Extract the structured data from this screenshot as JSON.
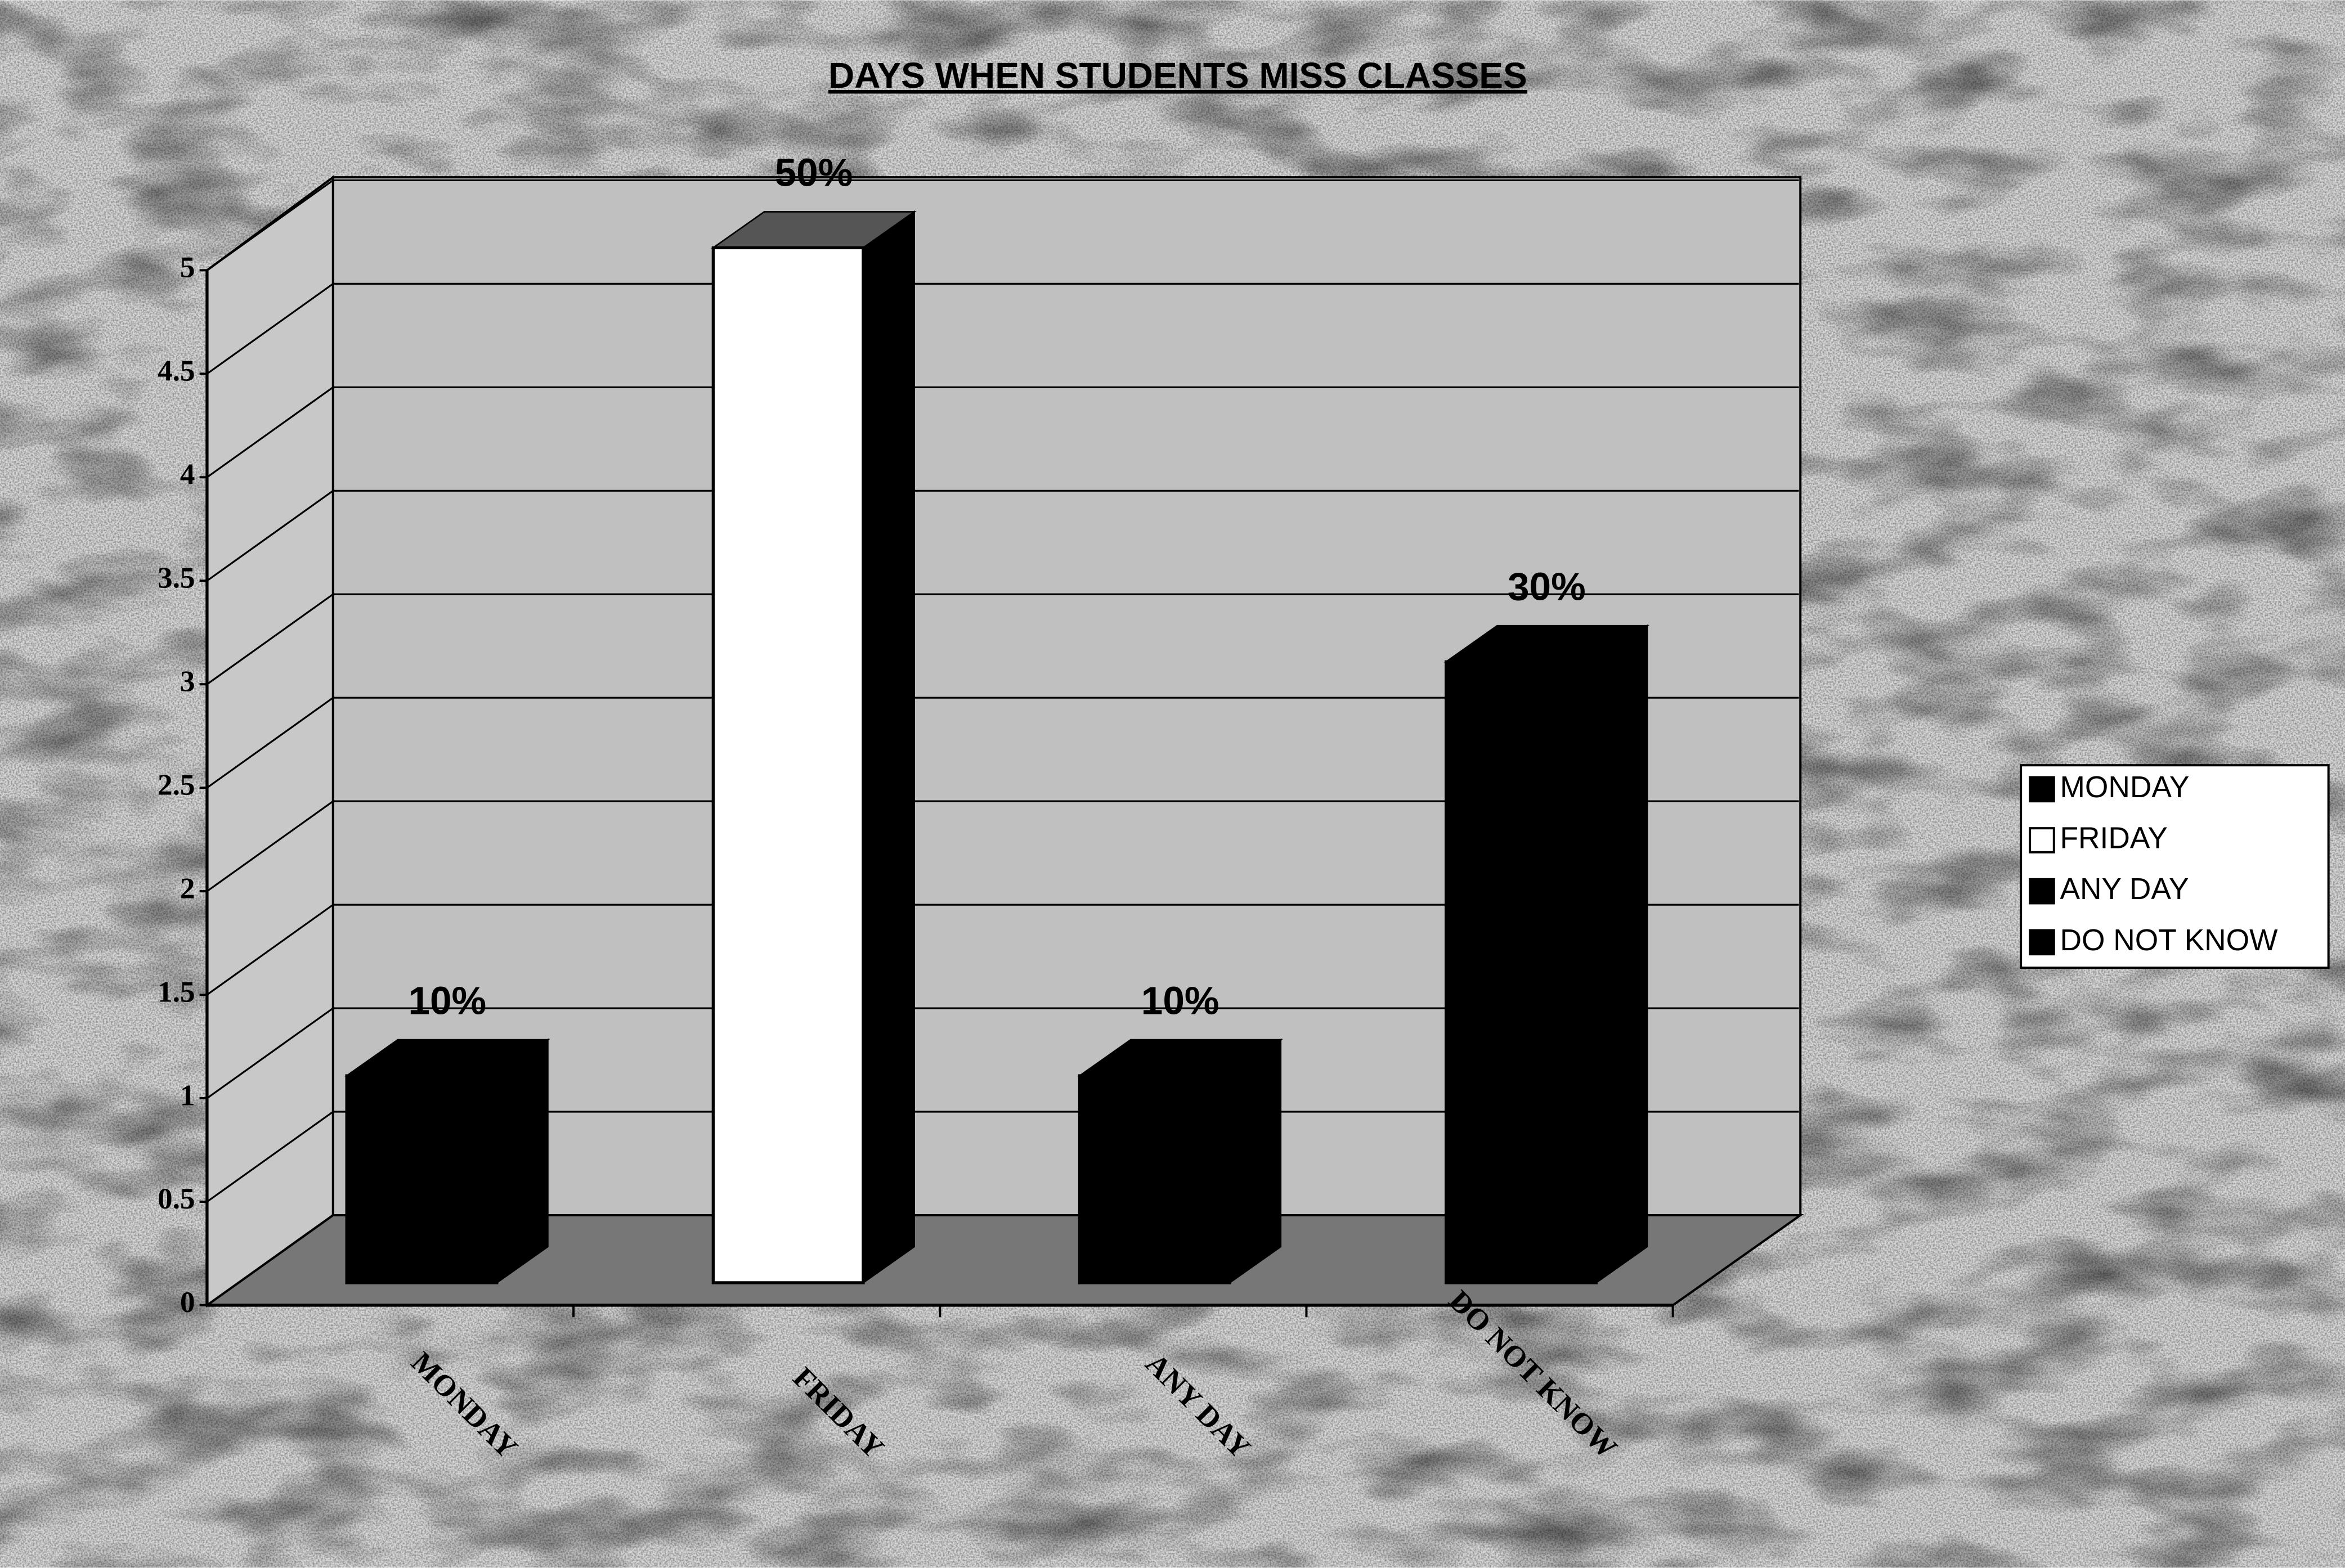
{
  "chart_data": {
    "type": "bar3d",
    "title": "DAYS WHEN STUDENTS MISS CLASSES",
    "categories": [
      "MONDAY",
      "FRIDAY",
      "ANY DAY",
      "DO NOT KNOW"
    ],
    "values": [
      1,
      5,
      1,
      3
    ],
    "value_labels": [
      "10%",
      "50%",
      "10%",
      "30%"
    ],
    "colors": [
      "#000000",
      "#ffffff",
      "#000000",
      "#000000"
    ],
    "ylim": [
      0,
      5
    ],
    "yticks": [
      0,
      0.5,
      1,
      1.5,
      2,
      2.5,
      3,
      3.5,
      4,
      4.5,
      5
    ],
    "grid": true,
    "legend": "right"
  }
}
